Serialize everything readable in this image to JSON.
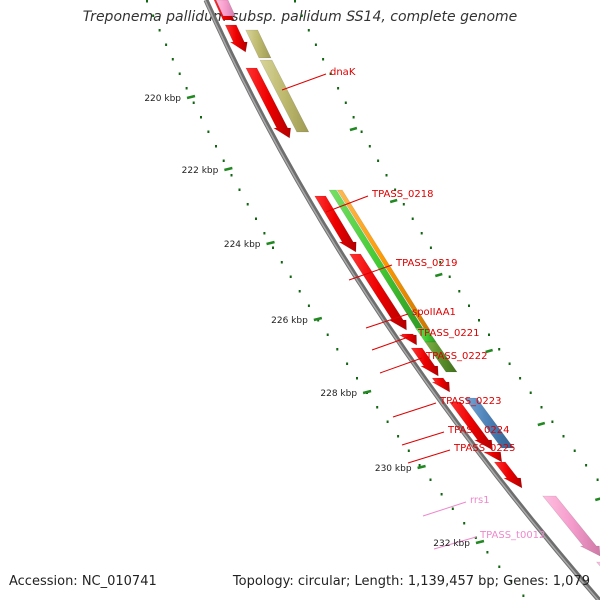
{
  "title": "Treponema pallidum subsp. pallidum SS14, complete genome",
  "accession": "Accession: NC_010741",
  "summary": "Topology: circular; Length: 1,139,457 bp; Genes: 1,079",
  "ticks": [
    {
      "label": "220 kbp"
    },
    {
      "label": "222 kbp"
    },
    {
      "label": "224 kbp"
    },
    {
      "label": "226 kbp"
    },
    {
      "label": "228 kbp"
    },
    {
      "label": "230 kbp"
    },
    {
      "label": "232 kbp"
    }
  ],
  "gene_labels": [
    {
      "name": "dnaK",
      "color": "#dd0000"
    },
    {
      "name": "TPASS_0218",
      "color": "#dd0000"
    },
    {
      "name": "TPASS_0219",
      "color": "#dd0000"
    },
    {
      "name": "spoIIAA1",
      "color": "#dd0000"
    },
    {
      "name": "TPASS_0221",
      "color": "#dd0000"
    },
    {
      "name": "TPASS_0222",
      "color": "#dd0000"
    },
    {
      "name": "TPASS_0223",
      "color": "#dd0000"
    },
    {
      "name": "TPASS_0224",
      "color": "#dd0000"
    },
    {
      "name": "TPASS_0225",
      "color": "#dd0000"
    },
    {
      "name": "rrs1",
      "color": "#ee88cc"
    },
    {
      "name": "TPASS_t0012",
      "color": "#ee88cc"
    }
  ],
  "colors": {
    "cds": "#ee0000",
    "rrna": "#f59ccc",
    "cog_olive": "#bdb96e",
    "cog_green": "#44cc33",
    "cog_orange": "#ff9900",
    "cog_darkgreen": "#5a8f2a",
    "cog_blue": "#4a7fb5",
    "backbone": "#808080",
    "tick_major": "#228822",
    "tick_dot": "#116611"
  }
}
